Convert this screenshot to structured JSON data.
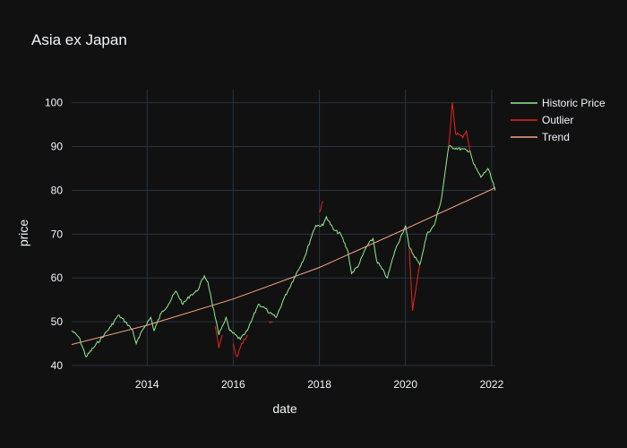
{
  "chart_data": {
    "type": "line",
    "title": "Asia ex Japan",
    "xlabel": "date",
    "ylabel": "price",
    "x_range": [
      "2012-04-01",
      "2022-02-01"
    ],
    "y_range": [
      40,
      103
    ],
    "x_ticks": [
      "2014",
      "2016",
      "2018",
      "2020",
      "2022"
    ],
    "y_ticks": [
      40,
      50,
      60,
      70,
      80,
      90,
      100
    ],
    "grid": true,
    "legend_position": "top-right",
    "colors": {
      "background": "#111111",
      "grid": "#283442",
      "text": "#f2f5fa",
      "historic": "#90ee90",
      "outlier": "#e8251a",
      "trend": "#f4a582"
    },
    "series": [
      {
        "name": "Historic Price",
        "color": "#90ee90",
        "points": [
          [
            "2012-04-01",
            48
          ],
          [
            "2012-06-01",
            46.5
          ],
          [
            "2012-08-01",
            42
          ],
          [
            "2012-10-01",
            44
          ],
          [
            "2013-01-01",
            47
          ],
          [
            "2013-03-01",
            49
          ],
          [
            "2013-05-01",
            51.5
          ],
          [
            "2013-07-01",
            50
          ],
          [
            "2013-09-01",
            48
          ],
          [
            "2013-10-01",
            45
          ],
          [
            "2013-12-01",
            48.5
          ],
          [
            "2014-02-01",
            51
          ],
          [
            "2014-03-01",
            48
          ],
          [
            "2014-05-01",
            52
          ],
          [
            "2014-07-01",
            54
          ],
          [
            "2014-09-01",
            57
          ],
          [
            "2014-11-01",
            54
          ],
          [
            "2015-01-01",
            56
          ],
          [
            "2015-03-01",
            57
          ],
          [
            "2015-05-01",
            60.5
          ],
          [
            "2015-06-01",
            59
          ],
          [
            "2015-07-01",
            55
          ],
          [
            "2015-08-01",
            51
          ],
          [
            "2015-09-01",
            47
          ],
          [
            "2015-10-01",
            49
          ],
          [
            "2015-11-01",
            51
          ],
          [
            "2015-12-01",
            48
          ],
          [
            "2016-03-01",
            46
          ],
          [
            "2016-04-01",
            47
          ],
          [
            "2016-05-01",
            48
          ],
          [
            "2016-06-01",
            50
          ],
          [
            "2016-08-01",
            54
          ],
          [
            "2016-10-01",
            53
          ],
          [
            "2016-11-01",
            52
          ],
          [
            "2017-01-01",
            51
          ],
          [
            "2017-03-01",
            55
          ],
          [
            "2017-06-01",
            60
          ],
          [
            "2017-09-01",
            65
          ],
          [
            "2017-11-01",
            70
          ],
          [
            "2017-12-01",
            72
          ],
          [
            "2018-02-01",
            72
          ],
          [
            "2018-03-01",
            74
          ],
          [
            "2018-05-01",
            71
          ],
          [
            "2018-07-01",
            70
          ],
          [
            "2018-09-01",
            66
          ],
          [
            "2018-10-01",
            61
          ],
          [
            "2018-12-01",
            63
          ],
          [
            "2019-02-01",
            67
          ],
          [
            "2019-04-01",
            69
          ],
          [
            "2019-05-01",
            64
          ],
          [
            "2019-08-01",
            60
          ],
          [
            "2019-10-01",
            66
          ],
          [
            "2019-12-01",
            70
          ],
          [
            "2020-01-01",
            72
          ],
          [
            "2020-02-01",
            67
          ],
          [
            "2020-05-01",
            63
          ],
          [
            "2020-07-01",
            70
          ],
          [
            "2020-09-01",
            72
          ],
          [
            "2020-11-01",
            78
          ],
          [
            "2020-12-01",
            84
          ],
          [
            "2021-01-01",
            90
          ],
          [
            "2021-07-01",
            89
          ],
          [
            "2021-08-01",
            86
          ],
          [
            "2021-10-01",
            83
          ],
          [
            "2021-12-01",
            85
          ],
          [
            "2022-02-01",
            80
          ]
        ]
      },
      {
        "name": "Outlier",
        "color": "#e8251a",
        "segments": [
          [
            [
              "2015-08-01",
              49
            ],
            [
              "2015-09-01",
              44
            ],
            [
              "2015-10-01",
              47
            ]
          ],
          [
            [
              "2016-01-01",
              45
            ],
            [
              "2016-02-01",
              42
            ],
            [
              "2016-03-01",
              44
            ],
            [
              "2016-04-01",
              46
            ],
            [
              "2016-05-01",
              47
            ]
          ],
          [
            [
              "2016-11-01",
              50
            ],
            [
              "2016-12-01",
              50
            ]
          ],
          [
            [
              "2018-01-01",
              75
            ],
            [
              "2018-02-01",
              77.5
            ]
          ],
          [
            [
              "2020-02-01",
              67
            ],
            [
              "2020-03-01",
              52.5
            ],
            [
              "2020-04-01",
              58
            ],
            [
              "2020-05-01",
              63
            ]
          ],
          [
            [
              "2021-01-01",
              90
            ],
            [
              "2021-02-01",
              100
            ],
            [
              "2021-03-01",
              93
            ],
            [
              "2021-05-01",
              92
            ],
            [
              "2021-06-01",
              93.5
            ],
            [
              "2021-07-01",
              89
            ]
          ]
        ]
      },
      {
        "name": "Trend",
        "color": "#f4a582",
        "points": [
          [
            "2012-04-01",
            44.8
          ],
          [
            "2014-01-01",
            49.2
          ],
          [
            "2016-01-01",
            55.2
          ],
          [
            "2018-01-01",
            62.4
          ],
          [
            "2020-01-01",
            71.2
          ],
          [
            "2022-02-01",
            80.6
          ]
        ]
      }
    ]
  }
}
